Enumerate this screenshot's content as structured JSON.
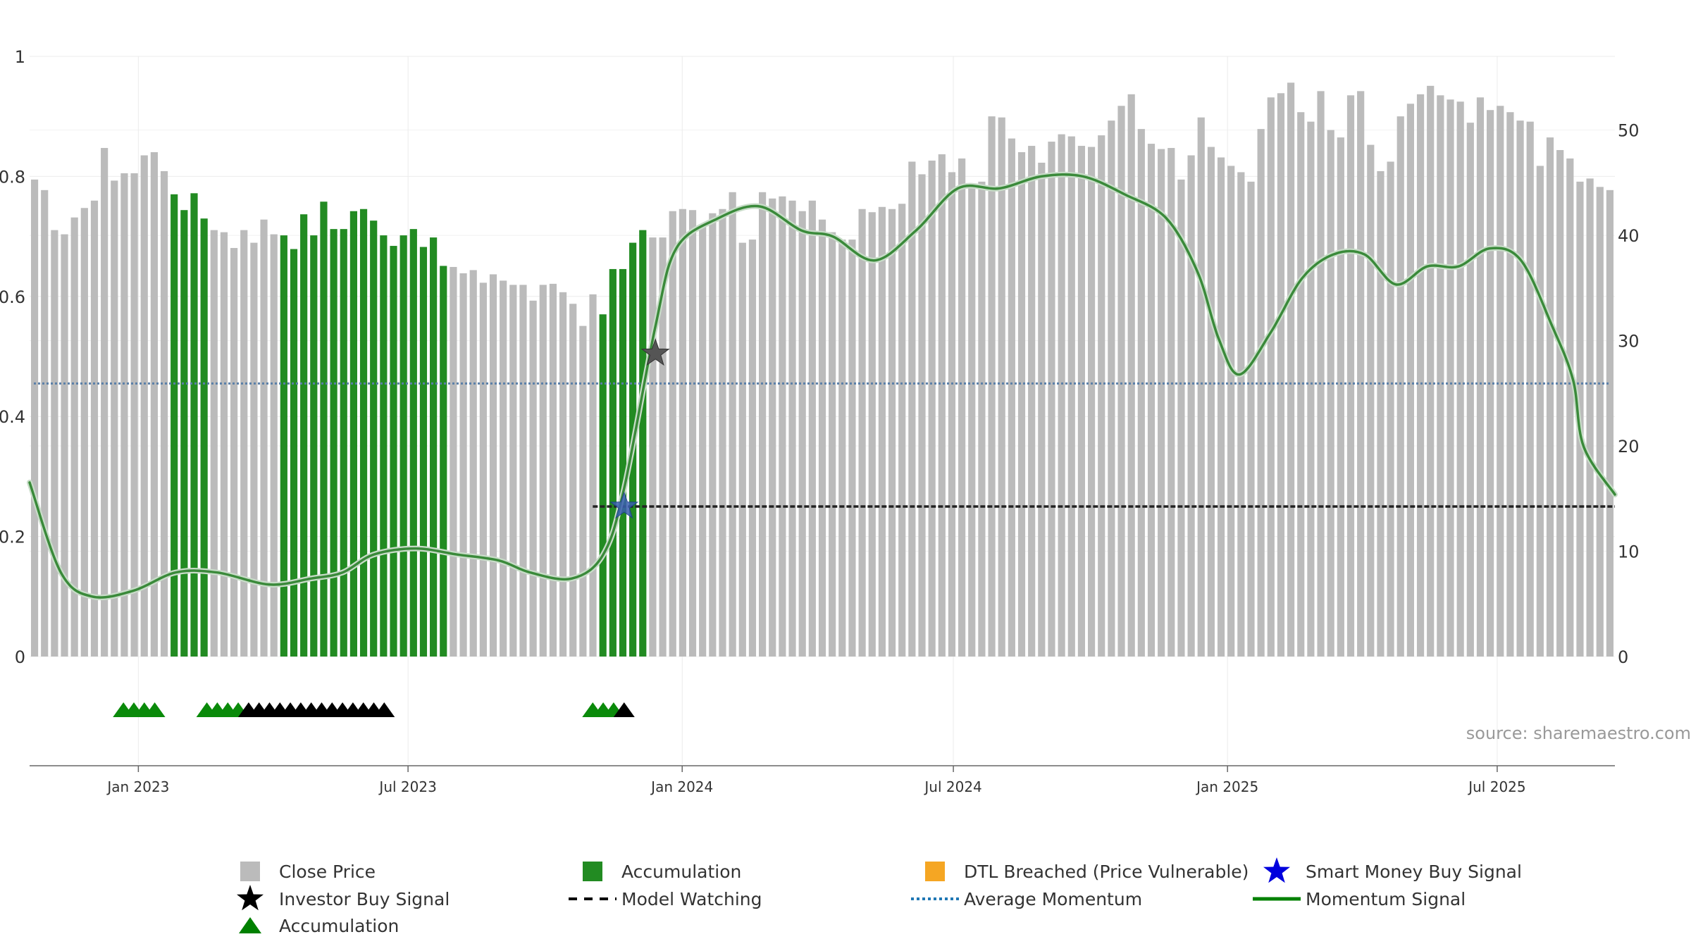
{
  "chart_data": {
    "type": "bar",
    "title": "",
    "source_text": "source: sharemaestro.com",
    "x_start": "2022-10-20",
    "x_end": "2025-09-18",
    "x_ticks": [
      "Jan 2023",
      "Jul 2023",
      "Jan 2024",
      "Jul 2024",
      "Jan 2025",
      "Jul 2025"
    ],
    "x_tick_dates": [
      "2023-01-01",
      "2023-07-01",
      "2024-01-01",
      "2024-07-01",
      "2025-01-01",
      "2025-07-01"
    ],
    "left_axis": {
      "ylim": [
        0,
        1
      ],
      "ticks": [
        "0",
        "0.2",
        "0.4",
        "0.6",
        "0.8",
        "1"
      ],
      "tick_values": [
        0,
        0.2,
        0.4,
        0.6,
        0.8,
        1
      ]
    },
    "right_axis": {
      "ylim": [
        0,
        57
      ],
      "ticks": [
        "0",
        "10",
        "20",
        "30",
        "40",
        "50"
      ],
      "tick_values": [
        0,
        10,
        20,
        30,
        40,
        50
      ]
    },
    "bar_series": {
      "name": "Close Price",
      "axis": "right",
      "values": [
        45.3,
        44.3,
        40.5,
        40.1,
        41.7,
        42.6,
        43.3,
        48.3,
        45.2,
        45.9,
        45.9,
        47.6,
        47.9,
        46.1,
        43.9,
        42.4,
        44.0,
        41.6,
        40.5,
        40.3,
        38.8,
        40.5,
        39.3,
        41.5,
        40.1,
        40.0,
        38.7,
        42.0,
        40.0,
        43.2,
        40.6,
        40.6,
        42.3,
        42.5,
        41.4,
        40.0,
        39.0,
        40.0,
        40.6,
        38.9,
        39.8,
        37.1,
        37.0,
        36.4,
        36.7,
        35.5,
        36.3,
        35.7,
        35.3,
        35.3,
        33.8,
        35.3,
        35.4,
        34.6,
        33.5,
        31.4,
        34.4,
        32.5,
        36.8,
        36.8,
        39.3,
        40.5,
        39.8,
        39.8,
        42.3,
        42.5,
        42.4,
        40.9,
        42.1,
        42.5,
        44.1,
        39.3,
        39.6,
        44.1,
        43.5,
        43.7,
        43.3,
        42.3,
        43.3,
        41.5,
        40.3,
        39.6,
        39.6,
        42.5,
        42.2,
        42.7,
        42.5,
        43.0,
        47.0,
        45.8,
        47.1,
        47.7,
        46.0,
        47.3,
        44.6,
        45.1,
        51.3,
        51.2,
        49.2,
        47.9,
        48.5,
        46.9,
        48.9,
        49.6,
        49.4,
        48.5,
        48.4,
        49.5,
        50.9,
        52.3,
        53.4,
        50.1,
        48.7,
        48.2,
        48.3,
        45.3,
        47.6,
        51.2,
        48.4,
        47.4,
        46.6,
        46.0,
        45.1,
        50.1,
        53.1,
        53.5,
        54.5,
        51.7,
        50.8,
        53.7,
        50.0,
        49.3,
        53.3,
        53.7,
        48.6,
        46.1,
        47.0,
        51.3,
        52.5,
        53.4,
        54.2,
        53.3,
        52.9,
        52.7,
        50.7,
        53.1,
        51.9,
        52.3,
        51.7,
        50.9,
        50.8,
        46.6,
        49.3,
        48.1,
        47.3,
        45.1,
        45.4,
        44.6,
        44.3
      ],
      "accumulation_ranges": [
        [
          14,
          17
        ],
        [
          25,
          41
        ],
        [
          57,
          61
        ]
      ]
    },
    "momentum_signal": {
      "name": "Momentum Signal",
      "axis": "left",
      "points": [
        [
          "2022-10-20",
          0.29
        ],
        [
          "2022-11-10",
          0.14
        ],
        [
          "2022-12-01",
          0.1
        ],
        [
          "2022-12-29",
          0.11
        ],
        [
          "2023-01-26",
          0.14
        ],
        [
          "2023-02-23",
          0.14
        ],
        [
          "2023-03-30",
          0.12
        ],
        [
          "2023-04-27",
          0.13
        ],
        [
          "2023-05-18",
          0.14
        ],
        [
          "2023-06-08",
          0.17
        ],
        [
          "2023-07-06",
          0.18
        ],
        [
          "2023-08-03",
          0.17
        ],
        [
          "2023-08-31",
          0.16
        ],
        [
          "2023-09-21",
          0.14
        ],
        [
          "2023-10-19",
          0.13
        ],
        [
          "2023-11-09",
          0.17
        ],
        [
          "2023-11-23",
          0.28
        ],
        [
          "2023-12-14",
          0.55
        ],
        [
          "2023-12-28",
          0.68
        ],
        [
          "2024-01-25",
          0.73
        ],
        [
          "2024-02-22",
          0.75
        ],
        [
          "2024-03-21",
          0.71
        ],
        [
          "2024-04-11",
          0.7
        ],
        [
          "2024-05-09",
          0.66
        ],
        [
          "2024-06-06",
          0.71
        ],
        [
          "2024-07-04",
          0.78
        ],
        [
          "2024-08-01",
          0.78
        ],
        [
          "2024-08-29",
          0.8
        ],
        [
          "2024-09-26",
          0.8
        ],
        [
          "2024-10-24",
          0.77
        ],
        [
          "2024-11-21",
          0.73
        ],
        [
          "2024-12-12",
          0.64
        ],
        [
          "2024-12-26",
          0.53
        ],
        [
          "2025-01-09",
          0.47
        ],
        [
          "2025-01-30",
          0.54
        ],
        [
          "2025-02-20",
          0.63
        ],
        [
          "2025-03-13",
          0.67
        ],
        [
          "2025-04-03",
          0.67
        ],
        [
          "2025-04-24",
          0.62
        ],
        [
          "2025-05-15",
          0.65
        ],
        [
          "2025-06-05",
          0.65
        ],
        [
          "2025-06-26",
          0.68
        ],
        [
          "2025-07-17",
          0.66
        ],
        [
          "2025-08-07",
          0.55
        ],
        [
          "2025-08-21",
          0.46
        ],
        [
          "2025-08-28",
          0.35
        ],
        [
          "2025-09-18",
          0.27
        ]
      ]
    },
    "average_momentum": {
      "name": "Average Momentum",
      "axis": "left",
      "value": 0.455
    },
    "model_watching": {
      "name": "Model Watching",
      "axis": "left",
      "value": 0.25,
      "start": "2023-11-02",
      "end": "2025-09-18"
    },
    "investor_buy_signal": {
      "name": "Investor Buy Signal",
      "axis": "left",
      "date": "2023-12-14",
      "value": 0.505
    },
    "smart_money_buy_signal": {
      "name": "Smart Money Buy Signal",
      "axis": "left",
      "date": "2023-11-23",
      "value": 0.25
    },
    "accumulation_markers": {
      "green": [
        "2022-12-22",
        "2022-12-29",
        "2023-01-05",
        "2023-01-12",
        "2023-02-16",
        "2023-02-23",
        "2023-03-02",
        "2023-03-09",
        "2023-11-02",
        "2023-11-09",
        "2023-11-16"
      ],
      "black": [
        "2023-03-16",
        "2023-03-23",
        "2023-03-30",
        "2023-04-06",
        "2023-04-13",
        "2023-04-20",
        "2023-04-27",
        "2023-05-04",
        "2023-05-11",
        "2023-05-18",
        "2023-05-25",
        "2023-06-01",
        "2023-06-08",
        "2023-06-15",
        "2023-11-23"
      ]
    },
    "legend": [
      {
        "label": "Close Price",
        "symbol": "square",
        "color": "#bbbbbb"
      },
      {
        "label": "Accumulation",
        "symbol": "square",
        "color": "#228b22"
      },
      {
        "label": "DTL Breached (Price Vulnerable)",
        "symbol": "square",
        "color": "#f5a623"
      },
      {
        "label": "Smart Money Buy Signal",
        "symbol": "star",
        "color": "#0000dd"
      },
      {
        "label": "Investor Buy Signal",
        "symbol": "star",
        "color": "#000000"
      },
      {
        "label": "Model Watching",
        "symbol": "dash",
        "color": "#000000"
      },
      {
        "label": "Average Momentum",
        "symbol": "dot",
        "color": "#1f77b4"
      },
      {
        "label": "Momentum Signal",
        "symbol": "line",
        "color": "#008000"
      },
      {
        "label": "Accumulation",
        "symbol": "triangle",
        "color": "#008000"
      }
    ],
    "colors": {
      "bar": "#bbbbbb",
      "accumulation_bar": "#228b22",
      "momentum": "#3a8a3a",
      "average": "#5a7fa8",
      "watching": "#222222",
      "triangle_green": "#0a8a0a",
      "triangle_black": "#000000"
    }
  }
}
